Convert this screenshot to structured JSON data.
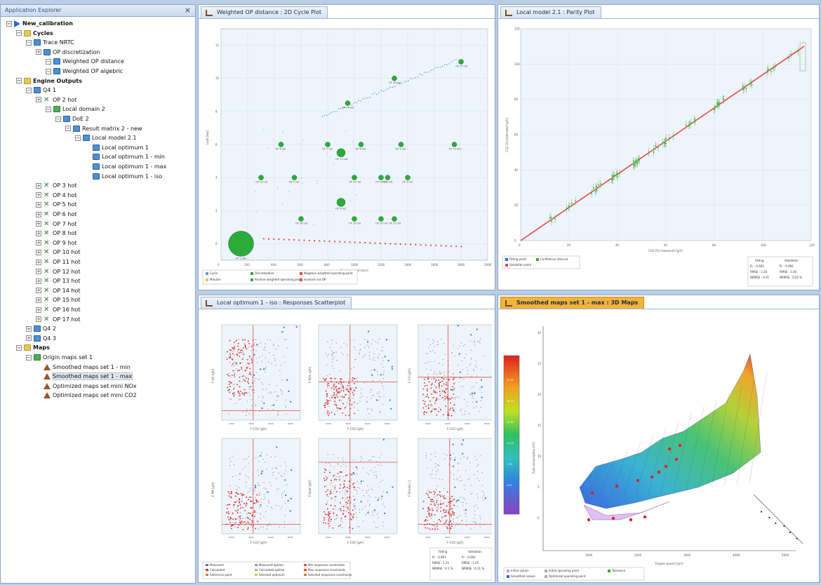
{
  "explorer": {
    "title": "Application Explorer",
    "close_symbol": "×",
    "nodes": [
      {
        "label": "New_calibration",
        "depth": 0,
        "icon": "play-icon",
        "bold": true
      },
      {
        "label": "Cycles",
        "depth": 1,
        "icon": "folder-icon",
        "bold": true
      },
      {
        "label": "Trace NRTC",
        "depth": 2,
        "icon": "cycle-icon"
      },
      {
        "label": "OP discretization",
        "depth": 3,
        "icon": "table-icon"
      },
      {
        "label": "Weighted OP distance",
        "depth": 4,
        "icon": "chart-icon"
      },
      {
        "label": "Weighted OP algebric",
        "depth": 4,
        "icon": "chart-icon"
      },
      {
        "label": "Engine Outputs",
        "depth": 1,
        "icon": "folder-icon",
        "bold": true
      },
      {
        "label": "Q4 1",
        "depth": 2,
        "icon": "output-icon"
      },
      {
        "label": "OP 2 hot",
        "depth": 3,
        "icon": "op-icon"
      },
      {
        "label": "Local domain 2",
        "depth": 4,
        "icon": "domain-icon"
      },
      {
        "label": "DoE 2",
        "depth": 5,
        "icon": "doe-icon"
      },
      {
        "label": "Result matrix 2 - new",
        "depth": 6,
        "icon": "matrix-icon"
      },
      {
        "label": "Local model 2.1",
        "depth": 7,
        "icon": "model-icon"
      },
      {
        "label": "Local optimum 1",
        "depth": 8,
        "icon": "optimum-icon"
      },
      {
        "label": "Local optimum 1 - min",
        "depth": 8,
        "icon": "optimum-icon"
      },
      {
        "label": "Local optimum 1 - max",
        "depth": 8,
        "icon": "optimum-icon"
      },
      {
        "label": "Local optimum 1 - iso",
        "depth": 8,
        "icon": "optimum-icon"
      },
      {
        "label": "OP 3 hot",
        "depth": 3,
        "icon": "op-icon"
      },
      {
        "label": "OP 4 hot",
        "depth": 3,
        "icon": "op-icon"
      },
      {
        "label": "OP 5 hot",
        "depth": 3,
        "icon": "op-icon"
      },
      {
        "label": "OP 6 hot",
        "depth": 3,
        "icon": "op-icon"
      },
      {
        "label": "OP 7 hot",
        "depth": 3,
        "icon": "op-icon"
      },
      {
        "label": "OP 8 hot",
        "depth": 3,
        "icon": "op-icon"
      },
      {
        "label": "OP 9 hot",
        "depth": 3,
        "icon": "op-icon"
      },
      {
        "label": "OP 10 hot",
        "depth": 3,
        "icon": "op-icon"
      },
      {
        "label": "OP 11 hot",
        "depth": 3,
        "icon": "op-icon"
      },
      {
        "label": "OP 12 hot",
        "depth": 3,
        "icon": "op-icon"
      },
      {
        "label": "OP 13 hot",
        "depth": 3,
        "icon": "op-icon"
      },
      {
        "label": "OP 14 hot",
        "depth": 3,
        "icon": "op-icon"
      },
      {
        "label": "OP 15 hot",
        "depth": 3,
        "icon": "op-icon"
      },
      {
        "label": "OP 16 hot",
        "depth": 3,
        "icon": "op-icon"
      },
      {
        "label": "OP 17 hot",
        "depth": 3,
        "icon": "op-icon"
      },
      {
        "label": "Q4 2",
        "depth": 2,
        "icon": "output-icon"
      },
      {
        "label": "Q4 3",
        "depth": 2,
        "icon": "output-icon"
      },
      {
        "label": "Maps",
        "depth": 1,
        "icon": "folder-icon",
        "bold": true
      },
      {
        "label": "Origin maps set 1",
        "depth": 2,
        "icon": "maps-icon"
      },
      {
        "label": "Smoothed maps set 1 - min",
        "depth": 3,
        "icon": "map-icon"
      },
      {
        "label": "Smoothed maps set 1 - max",
        "depth": 3,
        "icon": "map-icon",
        "selected": true
      },
      {
        "label": "Optimized maps set mini NOx",
        "depth": 3,
        "icon": "map-icon"
      },
      {
        "label": "Optimized maps set mini CO2",
        "depth": 3,
        "icon": "map-icon"
      }
    ]
  },
  "panels": {
    "cycle": {
      "title": "Weighted OP distance : 2D Cycle Plot"
    },
    "parity": {
      "title": "Local model 2.1 : Parity Plot"
    },
    "scatter": {
      "title": "Local optimum 1 - iso : Responses Scatterplot"
    },
    "maps3d": {
      "title": "Smoothed maps set 1 - max : 3D Maps"
    }
  },
  "cycle_plot": {
    "xlabel": "Engine speed [rpm]",
    "ylabel": "Load [bar]",
    "legend": [
      "Cycle",
      "Discretization",
      "Negative weighted operating point",
      "Minutes",
      "Positive weighted operating point",
      "Isochore set OP"
    ],
    "colors": {
      "cycle": "#5b9ee6",
      "positive": "#2eaa3a",
      "negative": "#e8473c"
    },
    "op_points": [
      {
        "label": "OP 17 hot",
        "x": 1800,
        "y": 11
      },
      {
        "label": "OP 15 hot",
        "x": 1300,
        "y": 10
      },
      {
        "label": "OP 16 hot",
        "x": 950,
        "y": 8.5
      },
      {
        "label": "OP 6 hot",
        "x": 450,
        "y": 6
      },
      {
        "label": "OP 7 hot",
        "x": 800,
        "y": 6
      },
      {
        "label": "OP 8 hot",
        "x": 1050,
        "y": 6
      },
      {
        "label": "OP 9 hot",
        "x": 1350,
        "y": 6
      },
      {
        "label": "OP 10 hot",
        "x": 1750,
        "y": 6
      },
      {
        "label": "OP 11 hot",
        "x": 900,
        "y": 5.5
      },
      {
        "label": "OP 12 hot",
        "x": 300,
        "y": 4
      },
      {
        "label": "OP 4 hot",
        "x": 550,
        "y": 4
      },
      {
        "label": "OP 13 hot",
        "x": 1000,
        "y": 4
      },
      {
        "label": "OP 14 hot",
        "x": 1200,
        "y": 4
      },
      {
        "label": "OP 2 hot",
        "x": 1250,
        "y": 4
      },
      {
        "label": "OP 3 hot",
        "x": 1400,
        "y": 4
      },
      {
        "label": "OP 5 hot",
        "x": 900,
        "y": 2.5
      },
      {
        "label": "OP 18 hot",
        "x": 600,
        "y": 1.5
      },
      {
        "label": "OP 19 hot",
        "x": 1000,
        "y": 1.5
      },
      {
        "label": "OP 20 hot",
        "x": 1200,
        "y": 1.5
      },
      {
        "label": "OP 21 hot",
        "x": 1300,
        "y": 1.5
      },
      {
        "label": "OP 1 idle",
        "x": 150,
        "y": 0
      }
    ]
  },
  "parity_plot": {
    "xlabel": "CO2 [%] measured [g/h]",
    "ylabel": "CO2 [%] estimated [g/h]",
    "legend": [
      "Fitting point",
      "Validation point",
      "Confidence interval"
    ],
    "stats_headers": [
      "Fitting",
      "Validation"
    ],
    "stats_rows": [
      [
        "R² : 0.993",
        "R² : 0.992"
      ],
      [
        "RMSE : 1.26",
        "RMSE : 1.46"
      ],
      [
        "NRMSE : 0.01",
        "NRMSE : 0.02 %"
      ]
    ]
  },
  "scatter_plot": {
    "xlabel": "F-CO2 [g/h]",
    "ylabels": [
      "F-HC [g/h]",
      "F-NOx [g/h]",
      "F-CO [g/h]",
      "F-PM [g/h]",
      "F-Soot [g/h]",
      "F-Smoke [-]"
    ],
    "legend": [
      "Measured",
      "Calculated",
      "Reference point",
      "Measured optima",
      "Calculated optima",
      "Selected optimum",
      "Min responses constraints",
      "Max responses constraints",
      "Selected responses constraints"
    ],
    "stats_headers": [
      "Fitting",
      "Validation"
    ],
    "stats_rows": [
      [
        "R² : 0.997",
        "R² : 0.992"
      ],
      [
        "RMSE : 1.21",
        "RMSE : 1.25"
      ],
      [
        "NRMSE : 0.1 %",
        "NRMSE : 0.11 %"
      ]
    ]
  },
  "maps3d": {
    "xlabel": "Engine speed [rpm]",
    "zlabel": "Fuel consumption [l/h]",
    "z_ticks": [
      "0",
      "5",
      "10",
      "15",
      "20",
      "25",
      "30"
    ],
    "x_ticks": [
      "1000",
      "2000",
      "3000",
      "4000",
      "5000"
    ],
    "colorbar_ticks": [
      "22.37",
      "18.74",
      "14.92",
      "11.25",
      "7.55",
      "3.67"
    ],
    "legend": [
      "Initial values",
      "Initial operating point",
      "Tolerance",
      "Smoothed values",
      "Optimized operating point"
    ]
  }
}
